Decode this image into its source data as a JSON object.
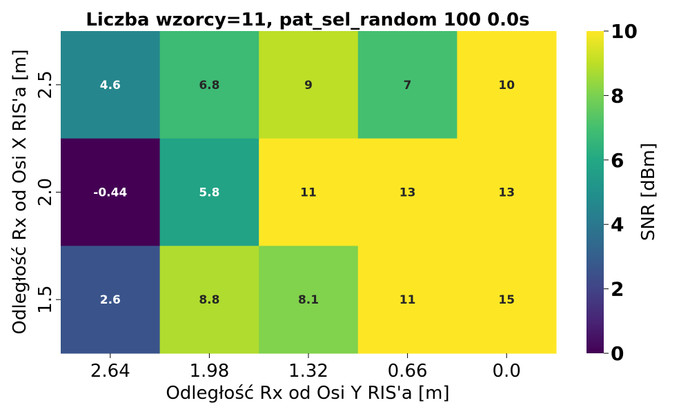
{
  "chart_data": {
    "type": "heatmap",
    "title": "Liczba wzorcy=11, pat_sel_random 100 0.0s",
    "xlabel": "Odległość Rx od Osi Y RIS'a [m]",
    "ylabel": "Odległość Rx od Osi X RIS'a [m]",
    "x_categories": [
      "2.64",
      "1.98",
      "1.32",
      "0.66",
      "0.0"
    ],
    "y_categories": [
      "2.5",
      "2.0",
      "1.5"
    ],
    "values": [
      [
        4.6,
        6.8,
        9,
        7,
        10
      ],
      [
        -0.44,
        5.8,
        11,
        13,
        13
      ],
      [
        2.6,
        8.8,
        8.1,
        11,
        15
      ]
    ],
    "cell_labels": [
      [
        "4.6",
        "6.8",
        "9",
        "7",
        "10"
      ],
      [
        "-0.44",
        "5.8",
        "11",
        "13",
        "13"
      ],
      [
        "2.6",
        "8.8",
        "8.1",
        "11",
        "15"
      ]
    ],
    "colormap": "viridis",
    "color_range": [
      0,
      10
    ],
    "colorbar": {
      "label": "SNR [dBm]",
      "ticks": [
        "0",
        "2",
        "4",
        "6",
        "8",
        "10"
      ]
    }
  }
}
